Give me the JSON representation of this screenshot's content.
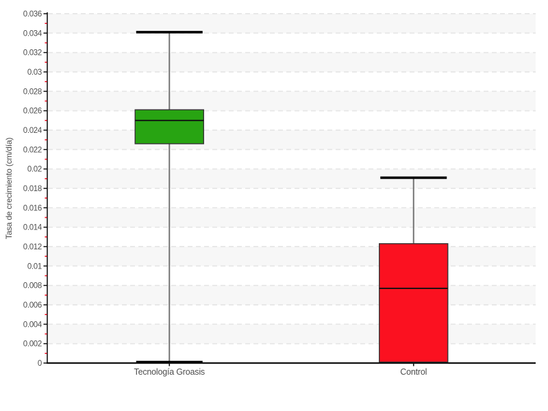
{
  "chart_data": {
    "type": "box",
    "title": "",
    "xlabel": "",
    "ylabel": "Tasa de crecimiento (cm/día)",
    "ylim": [
      0,
      0.036
    ],
    "ytick_step": 0.002,
    "yticks": [
      {
        "value": 0,
        "label": "0"
      },
      {
        "value": 0.002,
        "label": "0.002"
      },
      {
        "value": 0.004,
        "label": "0.004"
      },
      {
        "value": 0.006,
        "label": "0.006"
      },
      {
        "value": 0.008,
        "label": "0.008"
      },
      {
        "value": 0.01,
        "label": "0.01"
      },
      {
        "value": 0.012,
        "label": "0.012"
      },
      {
        "value": 0.014,
        "label": "0.014"
      },
      {
        "value": 0.016,
        "label": "0.016"
      },
      {
        "value": 0.018,
        "label": "0.018"
      },
      {
        "value": 0.02,
        "label": "0.02"
      },
      {
        "value": 0.022,
        "label": "0.022"
      },
      {
        "value": 0.024,
        "label": "0.024"
      },
      {
        "value": 0.026,
        "label": "0.026"
      },
      {
        "value": 0.028,
        "label": "0.028"
      },
      {
        "value": 0.03,
        "label": "0.03"
      },
      {
        "value": 0.032,
        "label": "0.032"
      },
      {
        "value": 0.034,
        "label": "0.034"
      },
      {
        "value": 0.036,
        "label": "0.036"
      }
    ],
    "minor_tick_step": 0.001,
    "categories": [
      "Tecnología Groasis",
      "Control"
    ],
    "series": [
      {
        "id": "tecnologia-groasis",
        "name": "Tecnología Groasis",
        "color": "#28a412",
        "min": 0.0001,
        "q1": 0.0226,
        "median": 0.025,
        "q3": 0.0261,
        "max": 0.0341
      },
      {
        "id": "control",
        "name": "Control",
        "color": "#fb1120",
        "min": 0.0001,
        "q1": 0.0001,
        "median": 0.0077,
        "q3": 0.0123,
        "max": 0.0191
      }
    ],
    "grid": true,
    "legend": "none",
    "colors": {
      "band_fill": "#f7f7f7",
      "grid_line": "#e6e6e6",
      "axis_line": "#111111",
      "minor_tick": "#f2182a",
      "whisker_line": "#747474",
      "whisker_cap": "#000000",
      "box_border": "#333333",
      "median_line": "#111111",
      "tick_text": "#4d4d4d"
    }
  }
}
